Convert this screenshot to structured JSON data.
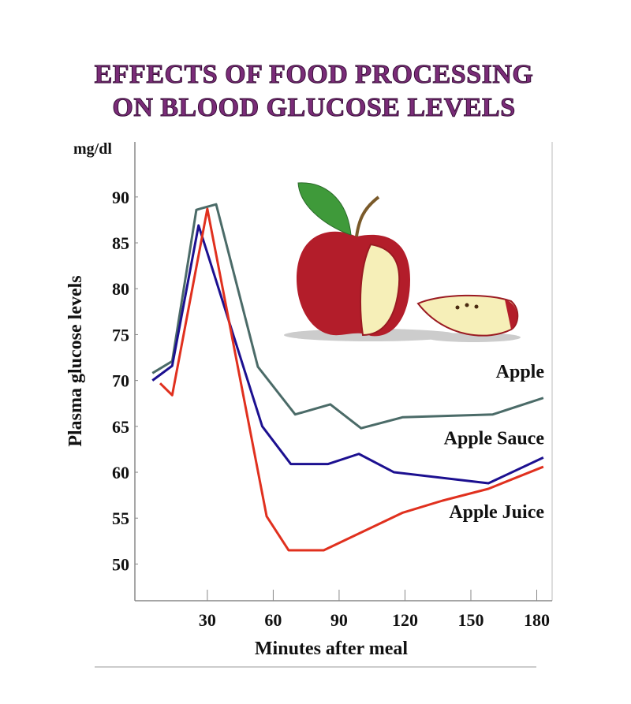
{
  "chart_data": {
    "type": "line",
    "title": [
      "EFFECTS OF FOOD PROCESSING",
      "ON BLOOD GLUCOSE LEVELS"
    ],
    "y_unit": "mg/dl",
    "ylabel": "Plasma glucose levels",
    "xlabel": "Minutes after meal",
    "xlim": [
      -3,
      187
    ],
    "xticks": [
      30,
      60,
      90,
      120,
      150,
      180
    ],
    "ylim": [
      46,
      96
    ],
    "yticks": [
      50,
      55,
      60,
      65,
      70,
      75,
      80,
      85,
      90
    ],
    "grid": false,
    "series": [
      {
        "name": "Apple",
        "color": "#4b6b68",
        "x": [
          5,
          14,
          25,
          34,
          53,
          70,
          86,
          100,
          119,
          160,
          183
        ],
        "values": [
          70.8,
          72.1,
          88.6,
          89.2,
          71.5,
          66.3,
          67.4,
          64.8,
          66,
          66.3,
          68.1
        ]
      },
      {
        "name": "Apple Sauce",
        "color": "#1c1090",
        "x": [
          5,
          14,
          26,
          30,
          55,
          68,
          85,
          99,
          115,
          158,
          183
        ],
        "values": [
          70,
          71.6,
          86.9,
          83.9,
          65,
          60.9,
          60.9,
          62,
          60,
          58.8,
          61.6
        ]
      },
      {
        "name": "Apple Juice",
        "color": "#e0301e",
        "x": [
          8.5,
          14,
          30,
          57,
          67,
          83,
          119,
          137,
          158,
          183
        ],
        "values": [
          69.7,
          68.4,
          88.7,
          55.2,
          51.5,
          51.5,
          55.6,
          56.9,
          58.2,
          60.6
        ]
      }
    ]
  }
}
